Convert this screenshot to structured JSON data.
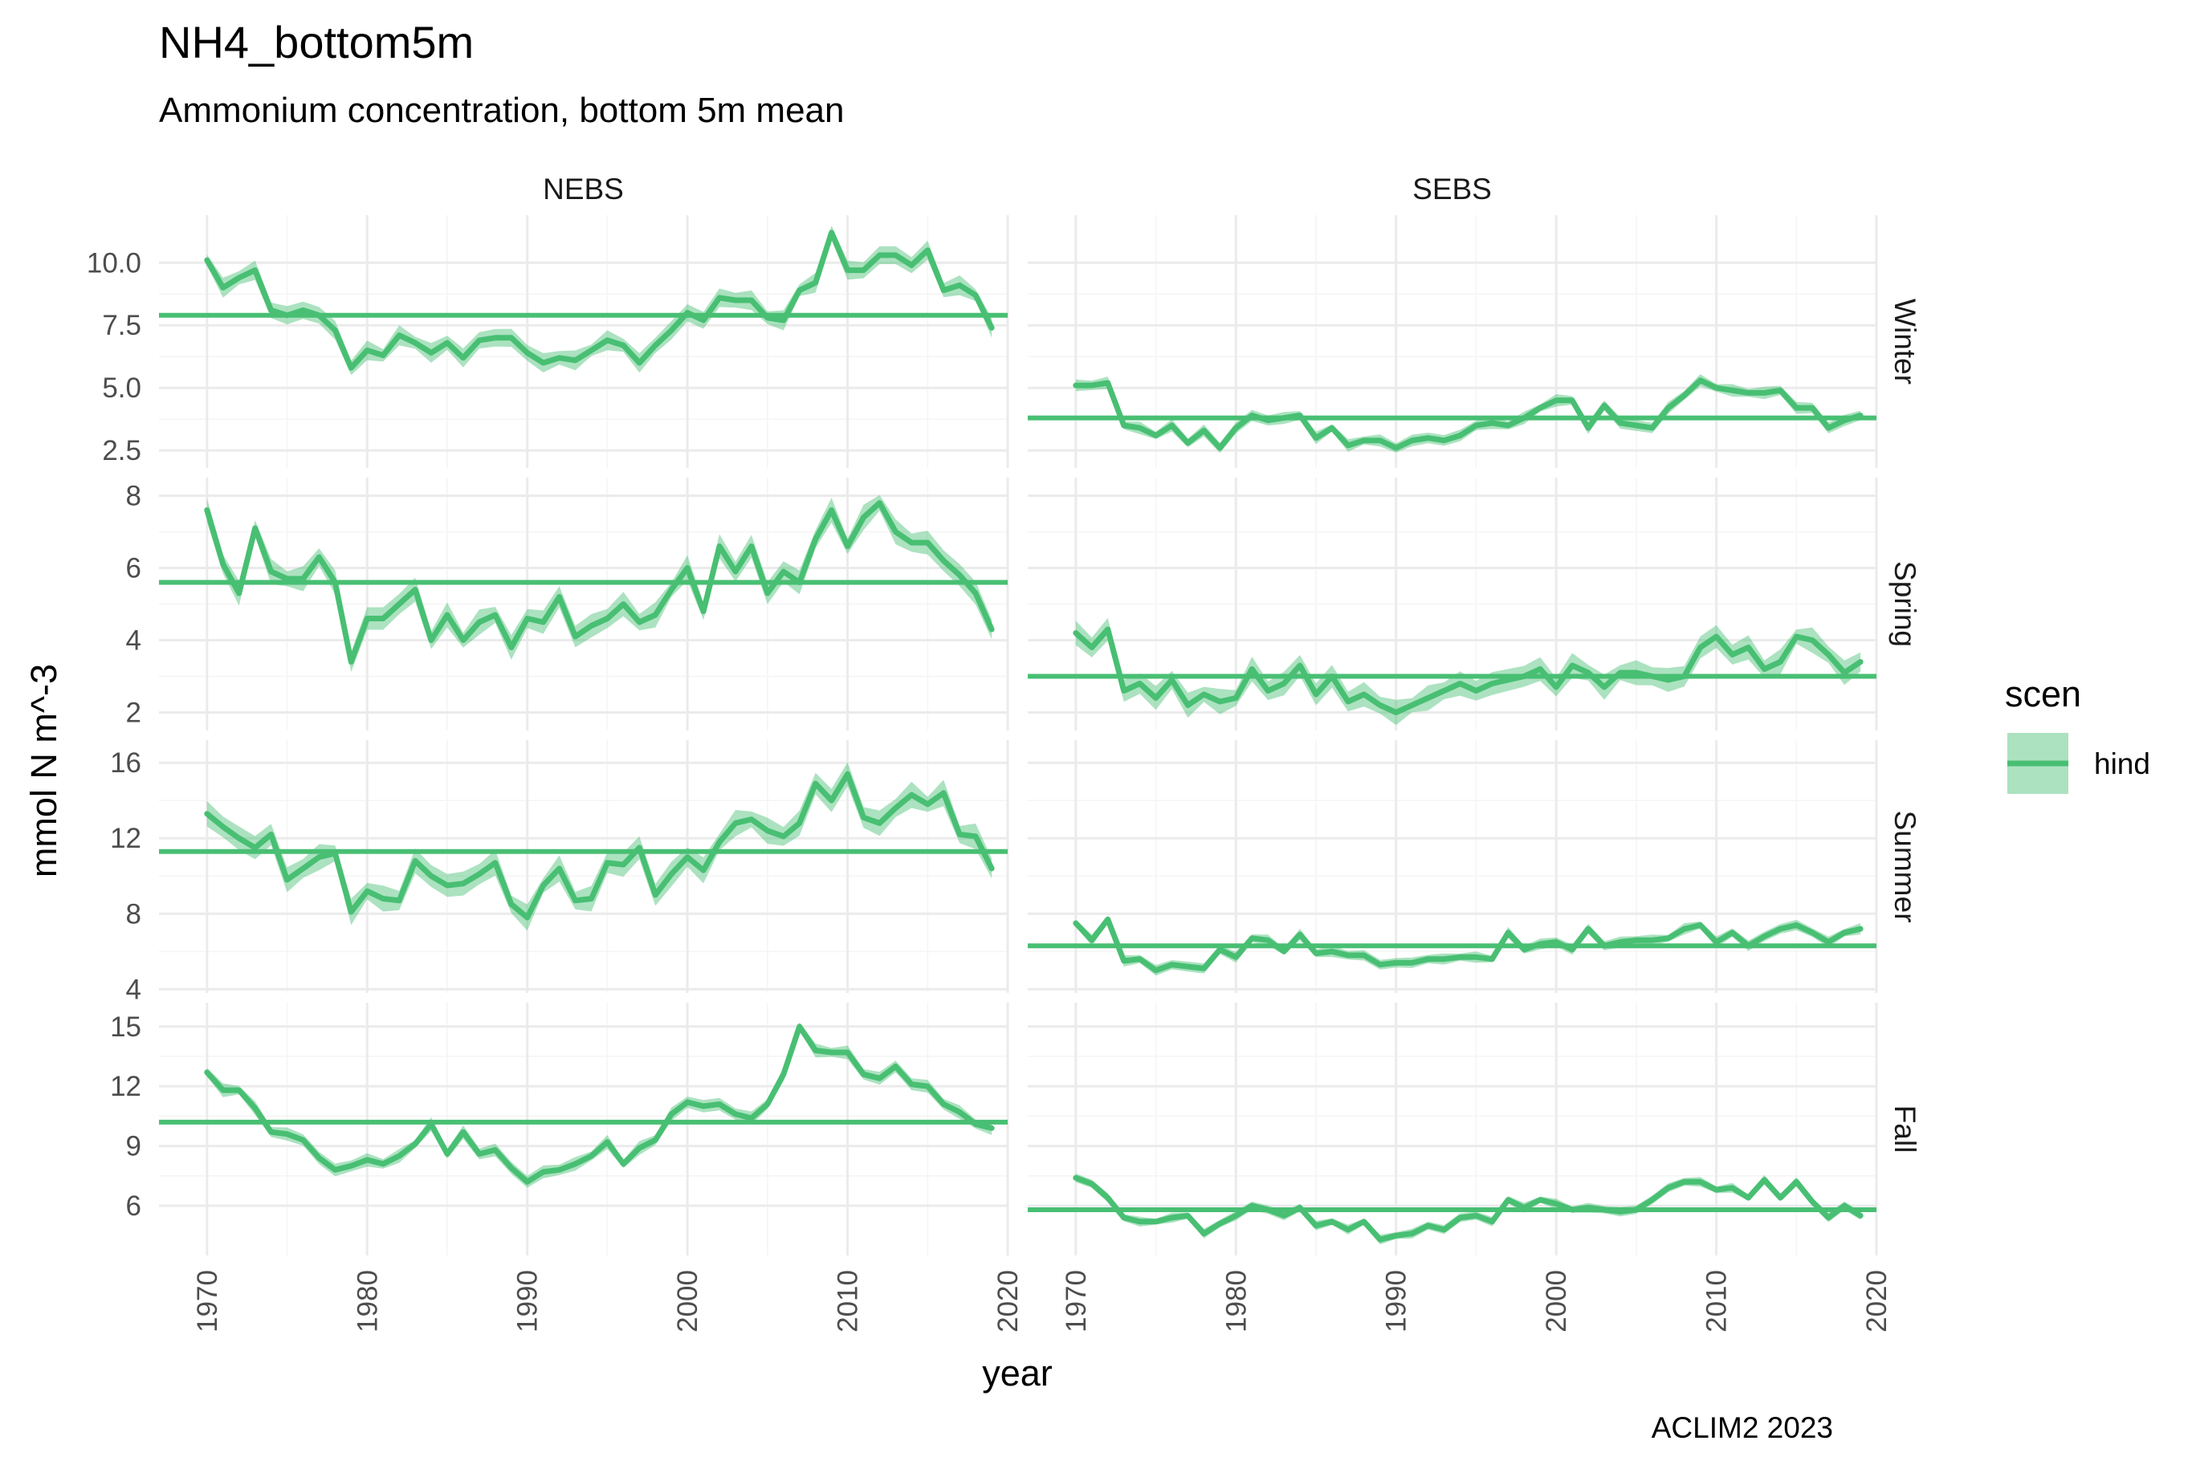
{
  "chart_data": {
    "type": "line",
    "title": "NH4_bottom5m",
    "subtitle": "Ammonium concentration, bottom 5m mean",
    "xlabel": "year",
    "ylabel": "mmol N m^-3",
    "caption": "ACLIM2 2023",
    "legend": {
      "title": "scen",
      "entries": [
        "hind"
      ],
      "placement": "right"
    },
    "color": "#48bf73",
    "band_color": "#48bf73",
    "grid": true,
    "x_range": [
      1967,
      2020
    ],
    "x_ticks": [
      1970,
      1980,
      1990,
      2000,
      2010,
      2020
    ],
    "x_tick_labels": [
      "1970",
      "1980",
      "1990",
      "2000",
      "2010",
      "2020"
    ],
    "col_labels": [
      "NEBS",
      "SEBS"
    ],
    "row_labels": [
      "Winter",
      "Spring",
      "Summer",
      "Fall"
    ],
    "years": [
      1970,
      1971,
      1972,
      1973,
      1974,
      1975,
      1976,
      1977,
      1978,
      1979,
      1980,
      1981,
      1982,
      1983,
      1984,
      1985,
      1986,
      1987,
      1988,
      1989,
      1990,
      1991,
      1992,
      1993,
      1994,
      1995,
      1996,
      1997,
      1998,
      1999,
      2000,
      2001,
      2002,
      2003,
      2004,
      2005,
      2006,
      2007,
      2008,
      2009,
      2010,
      2011,
      2012,
      2013,
      2014,
      2015,
      2016,
      2017,
      2018,
      2019
    ],
    "rows": [
      {
        "label": "Winter",
        "ylim": [
          1.8,
          11.9
        ],
        "yticks": [
          2.5,
          5.0,
          7.5,
          10.0
        ],
        "ytick_labels": [
          "2.5",
          "5.0",
          "7.5",
          "10.0"
        ],
        "panels": [
          {
            "region": "NEBS",
            "mean": 7.9,
            "values": [
              10.1,
              9.0,
              9.4,
              9.7,
              8.1,
              7.9,
              8.1,
              7.9,
              7.3,
              5.8,
              6.5,
              6.3,
              7.1,
              6.8,
              6.4,
              6.8,
              6.2,
              6.9,
              7.0,
              7.0,
              6.4,
              6.0,
              6.2,
              6.1,
              6.5,
              6.9,
              6.7,
              6.0,
              6.7,
              7.3,
              8.0,
              7.7,
              8.6,
              8.5,
              8.5,
              7.8,
              7.7,
              8.9,
              9.2,
              11.2,
              9.7,
              9.7,
              10.3,
              10.3,
              9.9,
              10.5,
              8.9,
              9.1,
              8.7,
              7.4
            ],
            "band": 0.4
          },
          {
            "region": "SEBS",
            "mean": 3.8,
            "values": [
              5.1,
              5.1,
              5.2,
              3.5,
              3.4,
              3.1,
              3.5,
              2.8,
              3.3,
              2.6,
              3.4,
              3.9,
              3.7,
              3.8,
              3.9,
              3.0,
              3.4,
              2.7,
              2.9,
              2.9,
              2.6,
              2.9,
              3.0,
              2.9,
              3.1,
              3.5,
              3.6,
              3.5,
              3.8,
              4.2,
              4.5,
              4.5,
              3.4,
              4.3,
              3.6,
              3.5,
              3.4,
              4.2,
              4.7,
              5.3,
              5.0,
              4.9,
              4.8,
              4.8,
              4.9,
              4.2,
              4.2,
              3.4,
              3.7,
              3.9
            ],
            "band": 0.25
          }
        ]
      },
      {
        "label": "Spring",
        "ylim": [
          1.5,
          8.5
        ],
        "yticks": [
          2,
          4,
          6,
          8
        ],
        "ytick_labels": [
          "2",
          "4",
          "6",
          "8"
        ],
        "panels": [
          {
            "region": "NEBS",
            "mean": 5.6,
            "values": [
              7.6,
              6.1,
              5.3,
              7.1,
              5.9,
              5.7,
              5.7,
              6.3,
              5.6,
              3.4,
              4.6,
              4.6,
              5.0,
              5.4,
              4.0,
              4.7,
              4.0,
              4.5,
              4.7,
              3.8,
              4.6,
              4.5,
              5.2,
              4.1,
              4.4,
              4.6,
              5.0,
              4.5,
              4.7,
              5.4,
              6.0,
              4.8,
              6.6,
              5.9,
              6.6,
              5.3,
              5.9,
              5.6,
              6.8,
              7.6,
              6.6,
              7.4,
              7.8,
              7.0,
              6.7,
              6.7,
              6.2,
              5.8,
              5.3,
              4.3
            ],
            "band": 0.35
          },
          {
            "region": "SEBS",
            "mean": 3.0,
            "values": [
              4.2,
              3.8,
              4.3,
              2.6,
              2.8,
              2.4,
              2.9,
              2.2,
              2.5,
              2.3,
              2.4,
              3.2,
              2.6,
              2.8,
              3.3,
              2.5,
              3.0,
              2.3,
              2.5,
              2.2,
              2.0,
              2.2,
              2.4,
              2.6,
              2.8,
              2.6,
              2.8,
              2.9,
              3.0,
              3.2,
              2.7,
              3.3,
              3.1,
              2.7,
              3.1,
              3.1,
              3.0,
              2.9,
              3.0,
              3.8,
              4.1,
              3.6,
              3.8,
              3.2,
              3.4,
              4.1,
              4.0,
              3.6,
              3.1,
              3.4
            ],
            "band": 0.35
          }
        ]
      },
      {
        "label": "Summer",
        "ylim": [
          3.8,
          17.2
        ],
        "yticks": [
          4,
          8,
          12,
          16
        ],
        "ytick_labels": [
          "4",
          "8",
          "12",
          "16"
        ],
        "panels": [
          {
            "region": "NEBS",
            "mean": 11.3,
            "values": [
              13.3,
              12.6,
              12.0,
              11.5,
              12.2,
              9.8,
              10.4,
              11.0,
              11.2,
              8.1,
              9.2,
              8.8,
              8.7,
              10.8,
              10.0,
              9.5,
              9.6,
              10.1,
              10.7,
              8.5,
              7.8,
              9.5,
              10.4,
              8.7,
              8.8,
              10.7,
              10.6,
              11.5,
              9.0,
              10.1,
              11.0,
              10.3,
              11.8,
              12.8,
              13.0,
              12.4,
              12.1,
              12.8,
              14.9,
              14.0,
              15.4,
              13.1,
              12.8,
              13.6,
              14.3,
              13.8,
              14.4,
              12.2,
              12.1,
              10.4
            ],
            "band": 0.7
          },
          {
            "region": "SEBS",
            "mean": 6.3,
            "values": [
              7.5,
              6.6,
              7.7,
              5.5,
              5.6,
              5.0,
              5.3,
              5.2,
              5.1,
              6.1,
              5.7,
              6.7,
              6.6,
              6.0,
              6.9,
              5.9,
              6.0,
              5.8,
              5.8,
              5.3,
              5.4,
              5.4,
              5.6,
              5.6,
              5.7,
              5.7,
              5.6,
              7.0,
              6.1,
              6.4,
              6.5,
              6.1,
              7.2,
              6.3,
              6.5,
              6.6,
              6.6,
              6.7,
              7.2,
              7.4,
              6.5,
              7.0,
              6.3,
              6.8,
              7.2,
              7.4,
              7.0,
              6.5,
              7.0,
              7.2
            ],
            "band": 0.3
          }
        ]
      },
      {
        "label": "Fall",
        "ylim": [
          3.5,
          16.2
        ],
        "yticks": [
          6,
          9,
          12,
          15
        ],
        "ytick_labels": [
          "6",
          "9",
          "12",
          "15"
        ],
        "panels": [
          {
            "region": "NEBS",
            "mean": 10.2,
            "values": [
              12.7,
              11.8,
              11.8,
              10.9,
              9.7,
              9.6,
              9.3,
              8.4,
              7.8,
              8.0,
              8.3,
              8.1,
              8.5,
              9.1,
              10.1,
              8.6,
              9.7,
              8.6,
              8.8,
              7.9,
              7.2,
              7.7,
              7.8,
              8.1,
              8.5,
              9.2,
              8.1,
              8.9,
              9.3,
              10.6,
              11.2,
              11.0,
              11.1,
              10.6,
              10.4,
              11.1,
              12.6,
              15.0,
              13.8,
              13.7,
              13.7,
              12.6,
              12.4,
              13.0,
              12.1,
              12.0,
              11.1,
              10.7,
              10.1,
              9.9
            ],
            "band": 0.35
          },
          {
            "region": "SEBS",
            "mean": 5.8,
            "values": [
              7.4,
              7.1,
              6.4,
              5.4,
              5.2,
              5.2,
              5.4,
              5.5,
              4.6,
              5.1,
              5.5,
              6.0,
              5.8,
              5.5,
              5.9,
              5.0,
              5.2,
              4.8,
              5.2,
              4.3,
              4.5,
              4.6,
              5.0,
              4.8,
              5.4,
              5.5,
              5.2,
              6.3,
              5.9,
              6.3,
              6.1,
              5.8,
              5.9,
              5.8,
              5.7,
              5.8,
              6.3,
              6.9,
              7.2,
              7.2,
              6.8,
              6.9,
              6.4,
              7.3,
              6.4,
              7.2,
              6.2,
              5.4,
              6.0,
              5.5
            ],
            "band": 0.25
          }
        ]
      }
    ]
  }
}
